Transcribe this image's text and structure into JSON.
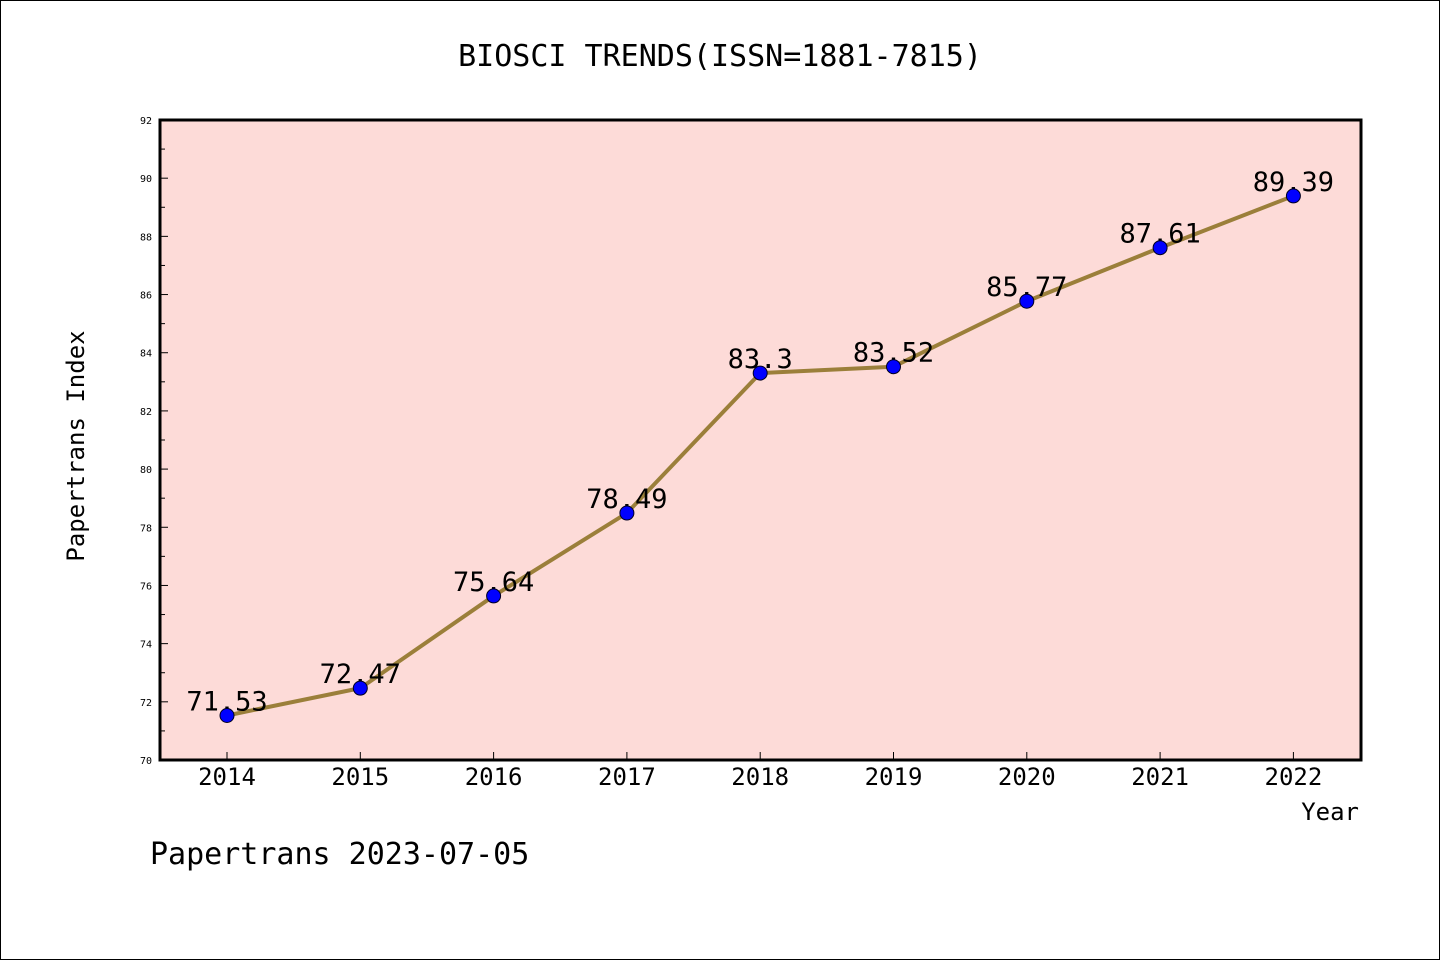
{
  "chart_data": {
    "type": "line",
    "title": "BIOSCI TRENDS(ISSN=1881-7815)",
    "xlabel": "Year",
    "ylabel": "Papertrans Index",
    "categories": [
      "2014",
      "2015",
      "2016",
      "2017",
      "2018",
      "2019",
      "2020",
      "2021",
      "2022"
    ],
    "series": [
      {
        "values": [
          71.53,
          72.47,
          75.64,
          78.49,
          83.3,
          83.52,
          85.77,
          87.61,
          89.39
        ],
        "labels": [
          "71.53",
          "72.47",
          "75.64",
          "78.49",
          "83.3",
          "83.52",
          "85.77",
          "87.61",
          "89.39"
        ]
      }
    ],
    "ylim": [
      70,
      92
    ],
    "yticks": [
      "70",
      "72",
      "74",
      "76",
      "78",
      "80",
      "82",
      "84",
      "86",
      "88",
      "90",
      "92"
    ],
    "grid": false,
    "colors": {
      "plot_background": "#FDDBD8",
      "line": "#9B7F3A",
      "marker": "#0000FF"
    }
  },
  "footer": "Papertrans 2023-07-05"
}
